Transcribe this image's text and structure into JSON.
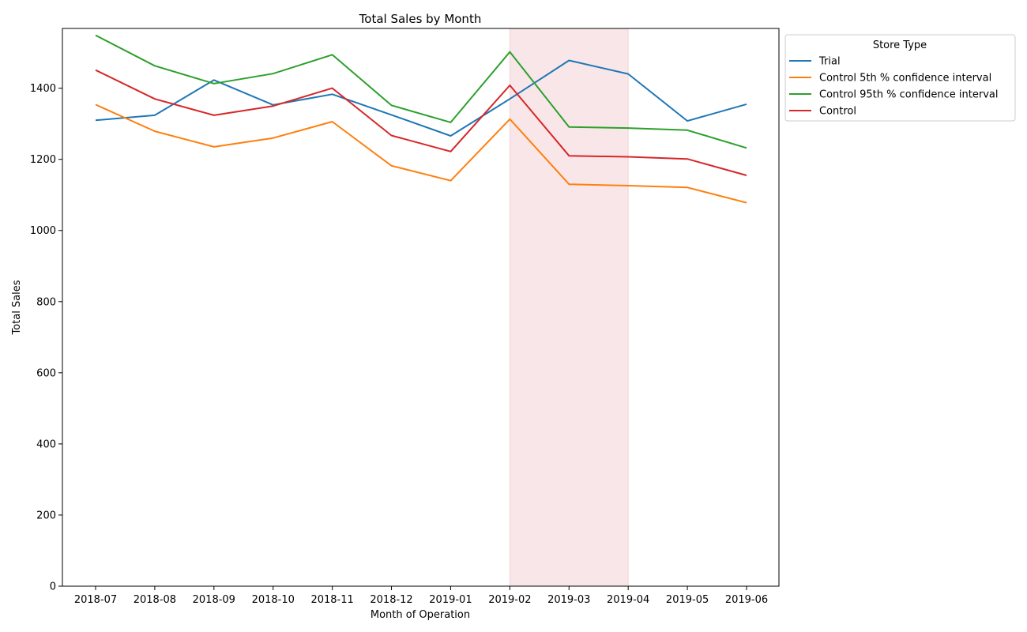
{
  "chart_data": {
    "type": "line",
    "title": "Total Sales by Month",
    "xlabel": "Month of Operation",
    "ylabel": "Total Sales",
    "categories": [
      "2018-07",
      "2018-08",
      "2018-09",
      "2018-10",
      "2018-11",
      "2018-12",
      "2019-01",
      "2019-02",
      "2019-03",
      "2019-04",
      "2019-05",
      "2019-06"
    ],
    "ylim": [
      0,
      1568
    ],
    "yticks": [
      0,
      200,
      400,
      600,
      800,
      1000,
      1200,
      1400
    ],
    "grid": false,
    "legend": {
      "title": "Store Type",
      "placement": "outside-top-right"
    },
    "highlight": {
      "from": "2019-02",
      "to": "2019-04",
      "color": "#f9e6e8"
    },
    "series": [
      {
        "name": "Trial",
        "color": "#1f77b4",
        "values": [
          1310,
          1324,
          1423,
          1353,
          1383,
          1325,
          1266,
          1370,
          1478,
          1440,
          1308,
          1355
        ]
      },
      {
        "name": "Control 5th % confidence interval",
        "color": "#ff7f0e",
        "values": [
          1354,
          1279,
          1235,
          1260,
          1306,
          1182,
          1140,
          1313,
          1130,
          1126,
          1121,
          1078
        ]
      },
      {
        "name": "Control 95th % confidence interval",
        "color": "#2ca02c",
        "values": [
          1549,
          1463,
          1413,
          1441,
          1494,
          1352,
          1304,
          1502,
          1291,
          1288,
          1282,
          1232
        ]
      },
      {
        "name": "Control",
        "color": "#d62728",
        "values": [
          1451,
          1370,
          1324,
          1350,
          1400,
          1267,
          1222,
          1408,
          1210,
          1207,
          1201,
          1155
        ]
      }
    ]
  }
}
